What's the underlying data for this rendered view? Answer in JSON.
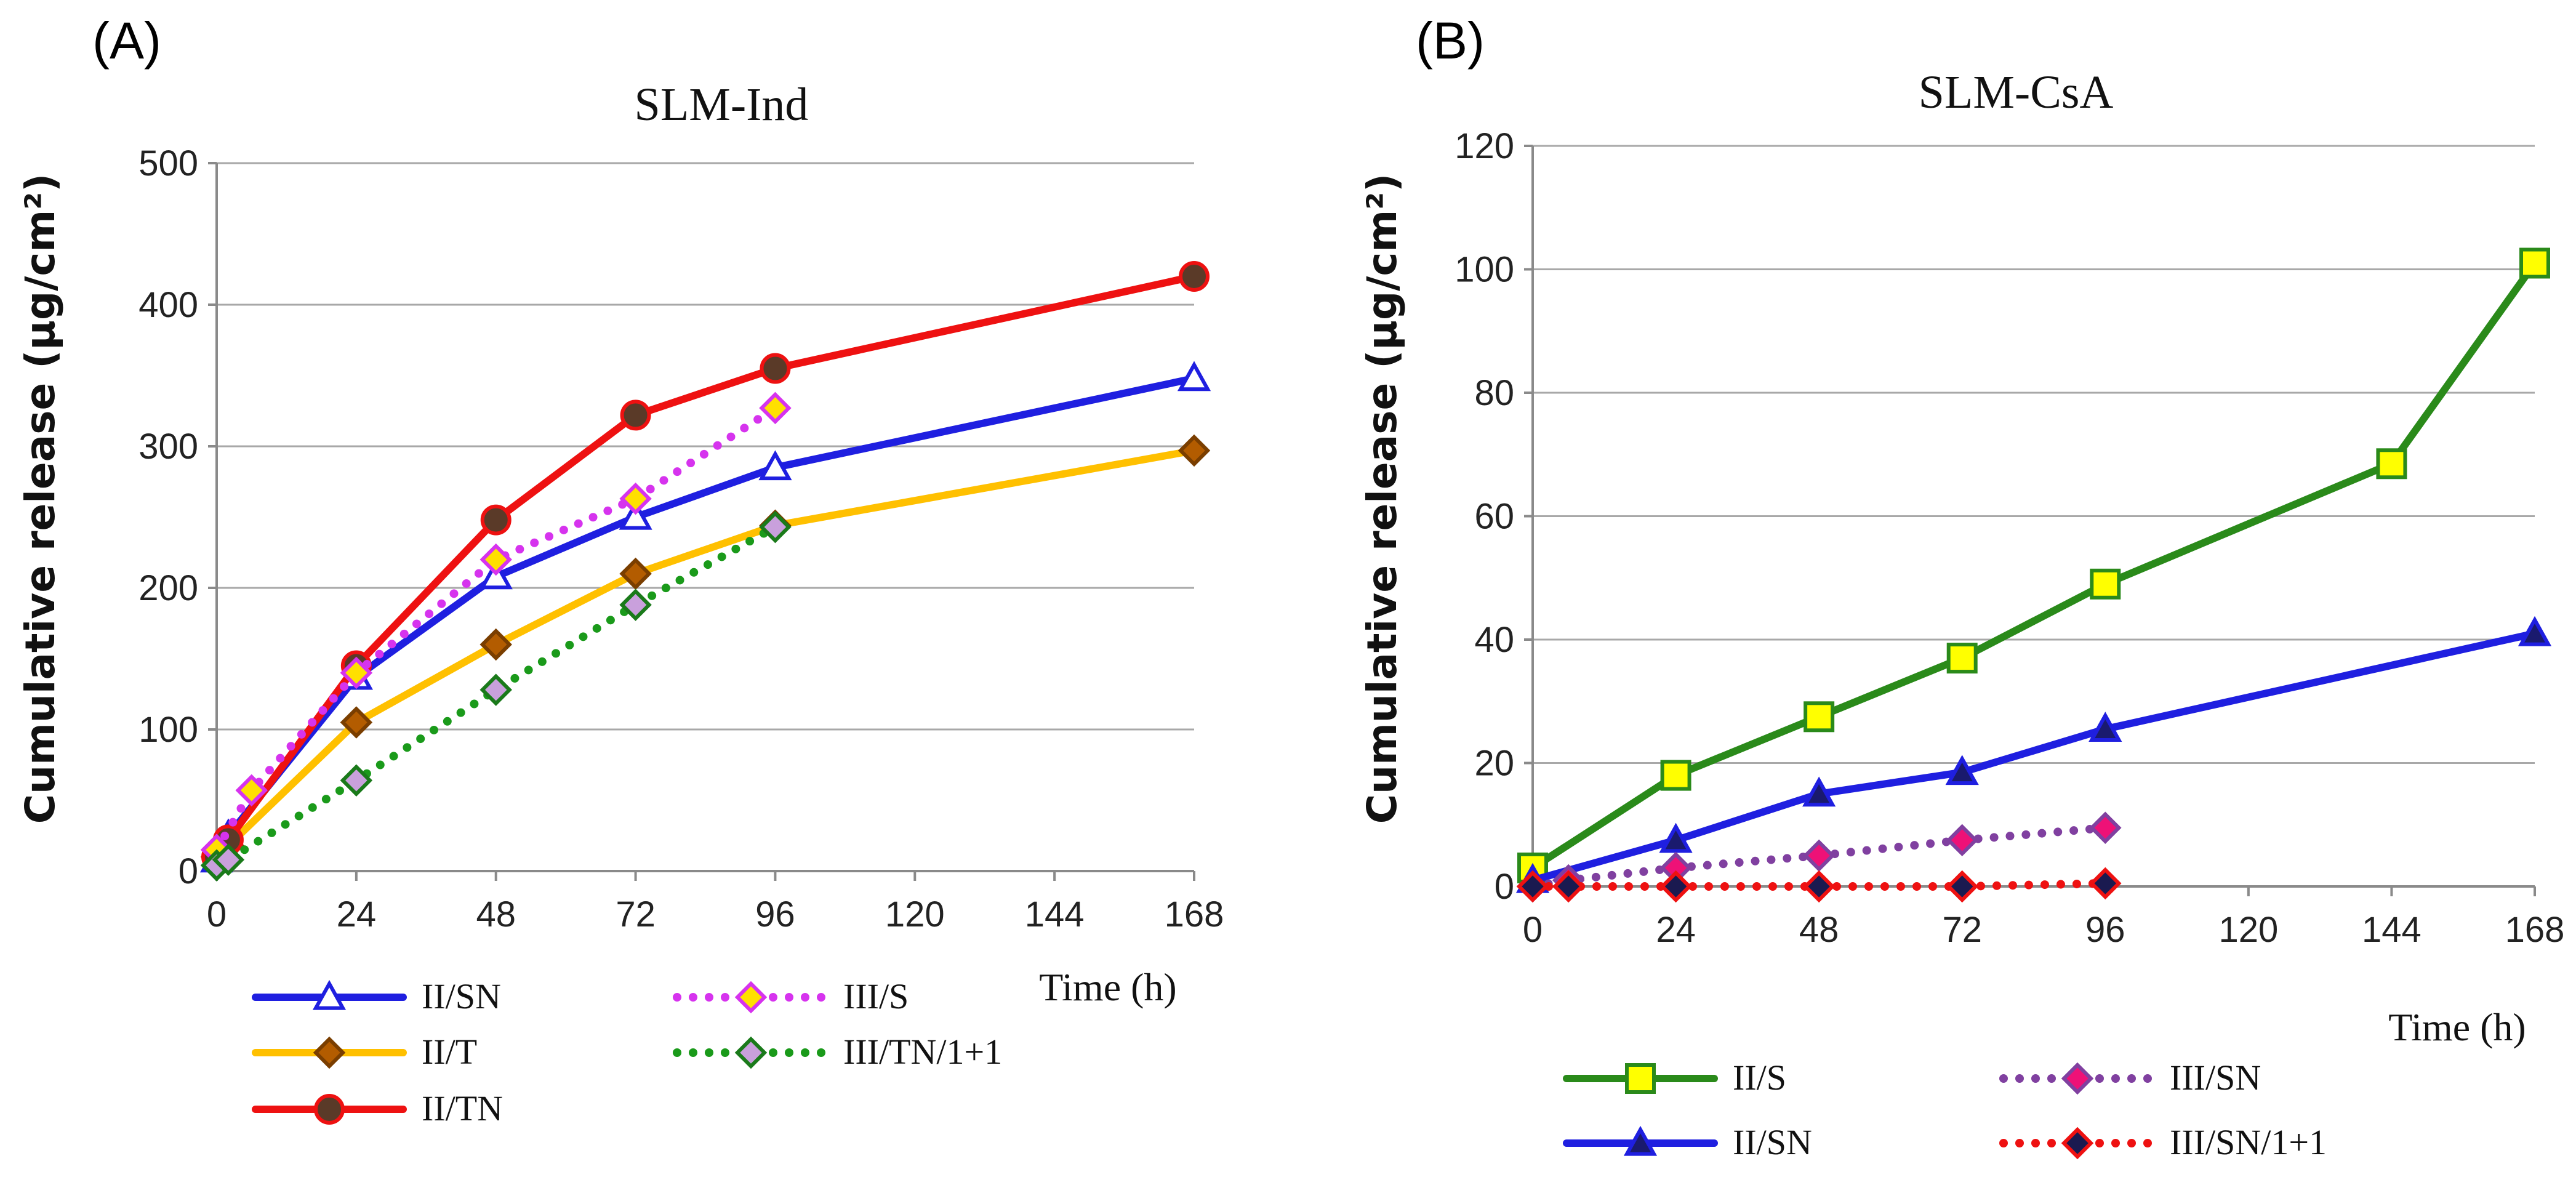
{
  "chart_data": [
    {
      "panel": "(A)",
      "type": "line",
      "title": "SLM-Ind",
      "xlabel": "Time (h)",
      "ylabel": "Cumulative release (µg/cm²)",
      "xlim": [
        0,
        168
      ],
      "ylim": [
        0,
        500
      ],
      "xticks": [
        0,
        24,
        48,
        72,
        96,
        120,
        144,
        168
      ],
      "yticks": [
        0,
        100,
        200,
        300,
        400,
        500
      ],
      "grid": true,
      "legend_position": "bottom",
      "series": [
        {
          "name": "II/SN",
          "color": "#1f1fe0",
          "line": "solid",
          "marker": "triangle-open",
          "marker_fill": "#ffffff",
          "marker_edge": "#1f1fe0",
          "x": [
            0,
            2,
            24,
            48,
            72,
            96,
            168
          ],
          "y": [
            8,
            25,
            137,
            208,
            250,
            285,
            348
          ]
        },
        {
          "name": "II/T",
          "color": "#ffc000",
          "line": "solid",
          "marker": "diamond",
          "marker_fill": "#b35c00",
          "marker_edge": "#7a3e00",
          "x": [
            0,
            2,
            24,
            48,
            72,
            96,
            168
          ],
          "y": [
            10,
            18,
            105,
            160,
            210,
            244,
            297
          ]
        },
        {
          "name": "II/TN",
          "color": "#ee1111",
          "line": "solid",
          "marker": "circle",
          "marker_fill": "#5a3a28",
          "marker_edge": "#ee1111",
          "x": [
            0,
            2,
            24,
            48,
            72,
            96,
            168
          ],
          "y": [
            10,
            22,
            145,
            248,
            322,
            355,
            420
          ]
        },
        {
          "name": "III/S",
          "color": "#d633ee",
          "line": "dotted",
          "marker": "diamond",
          "marker_fill": "#ffe000",
          "marker_edge": "#d633ee",
          "x": [
            0,
            6,
            24,
            48,
            72,
            96
          ],
          "y": [
            15,
            57,
            140,
            220,
            263,
            327
          ]
        },
        {
          "name": "III/TN/1+1",
          "color": "#1a9a1a",
          "line": "dotted",
          "marker": "diamond",
          "marker_fill": "#c9a0dc",
          "marker_edge": "#1a7a1a",
          "x": [
            0,
            2,
            24,
            48,
            72,
            96
          ],
          "y": [
            4,
            8,
            64,
            128,
            188,
            243
          ]
        }
      ]
    },
    {
      "panel": "(B)",
      "type": "line",
      "title": "SLM-CsA",
      "xlabel": "Time (h)",
      "ylabel": "Cumulative release (µg/cm²)",
      "xlim": [
        0,
        168
      ],
      "ylim": [
        0,
        120
      ],
      "xticks": [
        0,
        24,
        48,
        72,
        96,
        120,
        144,
        168
      ],
      "yticks": [
        0,
        20,
        40,
        60,
        80,
        100,
        120
      ],
      "grid": true,
      "legend_position": "bottom",
      "series": [
        {
          "name": "II/S",
          "color": "#2a8a1a",
          "line": "solid",
          "marker": "square",
          "marker_fill": "#ffff00",
          "marker_edge": "#2a8a1a",
          "x": [
            0,
            24,
            48,
            72,
            96,
            144,
            168
          ],
          "y": [
            3,
            18,
            27.5,
            37,
            49,
            68.5,
            101
          ]
        },
        {
          "name": "II/SN",
          "color": "#1f1fe0",
          "line": "solid",
          "marker": "triangle",
          "marker_fill": "#1a1a6e",
          "marker_edge": "#1f1fe0",
          "x": [
            0,
            24,
            48,
            72,
            96,
            168
          ],
          "y": [
            1,
            7.5,
            15,
            18.5,
            25.5,
            41
          ]
        },
        {
          "name": "III/SN",
          "color": "#8040a0",
          "line": "dotted",
          "marker": "diamond",
          "marker_fill": "#ee1177",
          "marker_edge": "#8040a0",
          "x": [
            0,
            6,
            24,
            48,
            72,
            96
          ],
          "y": [
            0,
            1,
            3,
            5,
            7.5,
            9.5
          ]
        },
        {
          "name": "III/SN/1+1",
          "color": "#ee1111",
          "line": "dotted",
          "marker": "diamond",
          "marker_fill": "#1a1a50",
          "marker_edge": "#ee1111",
          "x": [
            0,
            6,
            24,
            48,
            72,
            96
          ],
          "y": [
            0,
            0,
            0,
            0,
            0,
            0.5
          ]
        }
      ]
    }
  ]
}
